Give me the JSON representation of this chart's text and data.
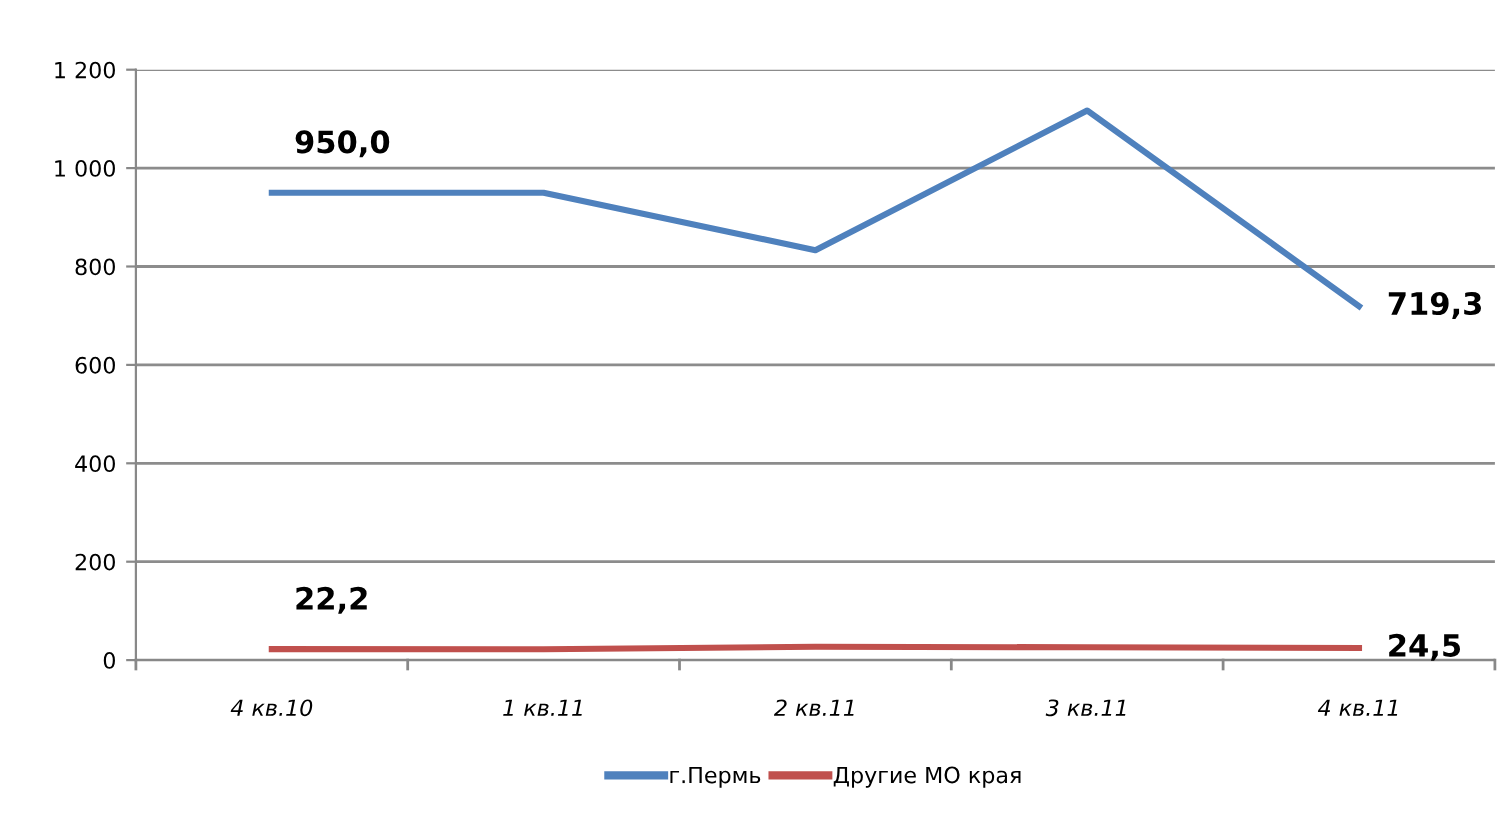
{
  "chart_data": {
    "type": "line",
    "categories": [
      "4 кв.10",
      "1 кв.11",
      "2 кв.11",
      "3 кв.11",
      "4 кв.11"
    ],
    "series": [
      {
        "name": "г.Пермь",
        "color": "#4f81bd",
        "values": [
          950.0,
          950,
          833,
          1117,
          719.3
        ],
        "value_labels": [
          "950,0",
          null,
          null,
          null,
          "719,3"
        ]
      },
      {
        "name": "Другие МО края",
        "color": "#c0504d",
        "values": [
          22.2,
          22,
          27,
          26,
          24.5
        ],
        "value_labels": [
          "22,2",
          null,
          null,
          null,
          "24,5"
        ]
      }
    ],
    "ylim": [
      0,
      1200
    ],
    "yticks": [
      0,
      200,
      400,
      600,
      800,
      {
        "value": 1000,
        "label": "1 000"
      },
      {
        "value": 1200,
        "label": "1 200"
      }
    ],
    "grid": "y",
    "legend": "bottom",
    "marker": "none",
    "line_style": "solid"
  }
}
